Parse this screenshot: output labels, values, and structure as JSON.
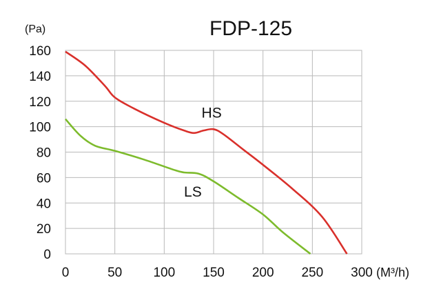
{
  "chart_data": {
    "type": "line",
    "title": "FDP-125",
    "ylabel": "(Pa)",
    "xlabel": "(M³/h)",
    "xlim": [
      0,
      300
    ],
    "ylim": [
      0,
      160
    ],
    "x_ticks": [
      0,
      50,
      100,
      150,
      200,
      250,
      300
    ],
    "y_ticks": [
      0,
      20,
      40,
      60,
      80,
      100,
      120,
      140,
      160
    ],
    "grid": true,
    "series": [
      {
        "name": "HS",
        "color": "#d9302b",
        "points": [
          [
            0,
            159
          ],
          [
            20,
            148
          ],
          [
            40,
            132
          ],
          [
            50,
            123
          ],
          [
            70,
            114
          ],
          [
            100,
            103
          ],
          [
            120,
            97
          ],
          [
            130,
            95
          ],
          [
            140,
            97
          ],
          [
            150,
            98
          ],
          [
            160,
            94
          ],
          [
            180,
            82
          ],
          [
            200,
            70
          ],
          [
            230,
            51
          ],
          [
            260,
            29
          ],
          [
            285,
            0
          ]
        ]
      },
      {
        "name": "LS",
        "color": "#7dbb2c",
        "points": [
          [
            0,
            106
          ],
          [
            15,
            93
          ],
          [
            30,
            85
          ],
          [
            50,
            81
          ],
          [
            80,
            74
          ],
          [
            110,
            66
          ],
          [
            120,
            64
          ],
          [
            135,
            63
          ],
          [
            150,
            57
          ],
          [
            175,
            44
          ],
          [
            200,
            31
          ],
          [
            220,
            17
          ],
          [
            248,
            0
          ]
        ]
      }
    ],
    "annotations": [
      {
        "text": "HS",
        "x": 148,
        "y": 107
      },
      {
        "text": "LS",
        "x": 129,
        "y": 45
      }
    ]
  }
}
